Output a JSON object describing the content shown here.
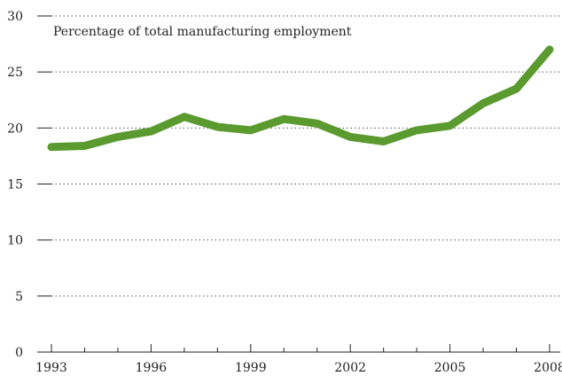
{
  "chart_data": {
    "type": "line",
    "title": "",
    "annotation": "Percentage of total manufacturing employment",
    "xlabel": "",
    "ylabel": "",
    "x": [
      1993,
      1994,
      1995,
      1996,
      1997,
      1998,
      1999,
      2000,
      2001,
      2002,
      2003,
      2004,
      2005,
      2006,
      2007,
      2008
    ],
    "series": [
      {
        "values": [
          18.3,
          18.4,
          19.2,
          19.7,
          21.0,
          20.1,
          19.8,
          20.8,
          20.4,
          19.2,
          18.8,
          19.8,
          20.2,
          22.2,
          23.5,
          27.0
        ]
      }
    ],
    "xticks": [
      "1993",
      "1996",
      "1999",
      "2002",
      "2005",
      "2008"
    ],
    "yticks": [
      "0",
      "5",
      "10",
      "15",
      "20",
      "25",
      "30"
    ],
    "xlim": [
      1993,
      2008
    ],
    "ylim": [
      0,
      30
    ],
    "grid": "horizontal dotted",
    "legend": "none",
    "colors": {
      "line": "#5a9a2e",
      "grid": "#555555",
      "text": "#222222"
    }
  }
}
